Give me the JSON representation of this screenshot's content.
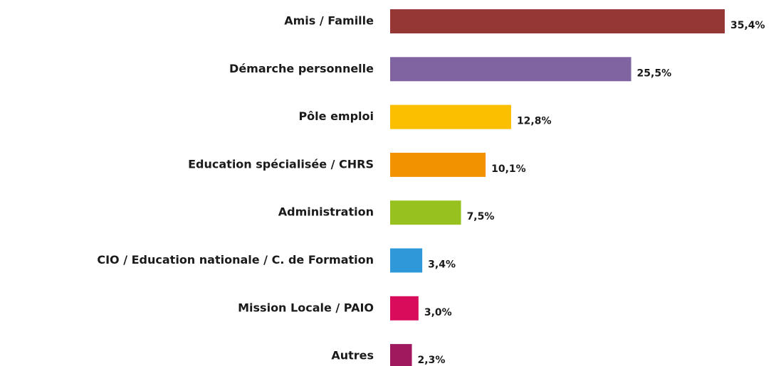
{
  "chart_data": {
    "type": "hbar",
    "categories": [
      "Amis / Famille",
      "Démarche personnelle",
      "Pôle emploi",
      "Education spécialisée / CHRS",
      "Administration",
      "CIO / Education nationale / C. de Formation",
      "Mission Locale / PAIO",
      "Autres"
    ],
    "values": [
      35.4,
      25.5,
      12.8,
      10.1,
      7.5,
      3.4,
      3.0,
      2.3
    ],
    "value_labels": [
      "35,4%",
      "25,5%",
      "12,8%",
      "10,1%",
      "7,5%",
      "3,4%",
      "3,0%",
      "2,3%"
    ],
    "colors": [
      "#953735",
      "#8064a2",
      "#fcbf00",
      "#f39200",
      "#97c11f",
      "#2e98d8",
      "#d80c5b",
      "#a0195f"
    ]
  }
}
